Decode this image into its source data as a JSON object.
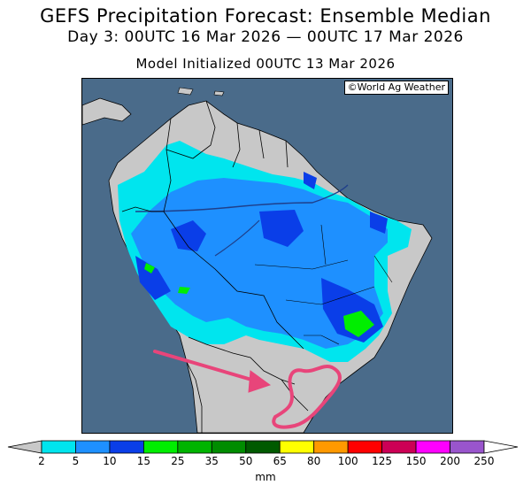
{
  "title": {
    "line1": "GEFS Precipitation Forecast: Ensemble Median",
    "line2": "Day 3: 00UTC 16 Mar 2026 — 00UTC 17 Mar 2026",
    "line3": "Model Initialized 00UTC 13 Mar 2026"
  },
  "credit": "©World Ag Weather",
  "colors": {
    "ocean": "#4a6b8a",
    "land": "#c8c8c8",
    "highlight": "#e8457a"
  },
  "legend": {
    "unit": "mm",
    "bins": [
      {
        "label": "2",
        "color": "#00e5ee"
      },
      {
        "label": "5",
        "color": "#1e90ff"
      },
      {
        "label": "10",
        "color": "#0a3ee8"
      },
      {
        "label": "15",
        "color": "#00ee00"
      },
      {
        "label": "25",
        "color": "#00b400"
      },
      {
        "label": "35",
        "color": "#008c00"
      },
      {
        "label": "50",
        "color": "#005a00"
      },
      {
        "label": "65",
        "color": "#ffff00"
      },
      {
        "label": "80",
        "color": "#ff9900"
      },
      {
        "label": "100",
        "color": "#ff0000"
      },
      {
        "label": "125",
        "color": "#cc0055"
      },
      {
        "label": "150",
        "color": "#ff00ff"
      },
      {
        "label": "200",
        "color": "#9955cc"
      },
      {
        "label": "250",
        "color": ""
      }
    ]
  },
  "annotation": {
    "arrow": "pink-arrow",
    "outline": "pink-outline"
  }
}
